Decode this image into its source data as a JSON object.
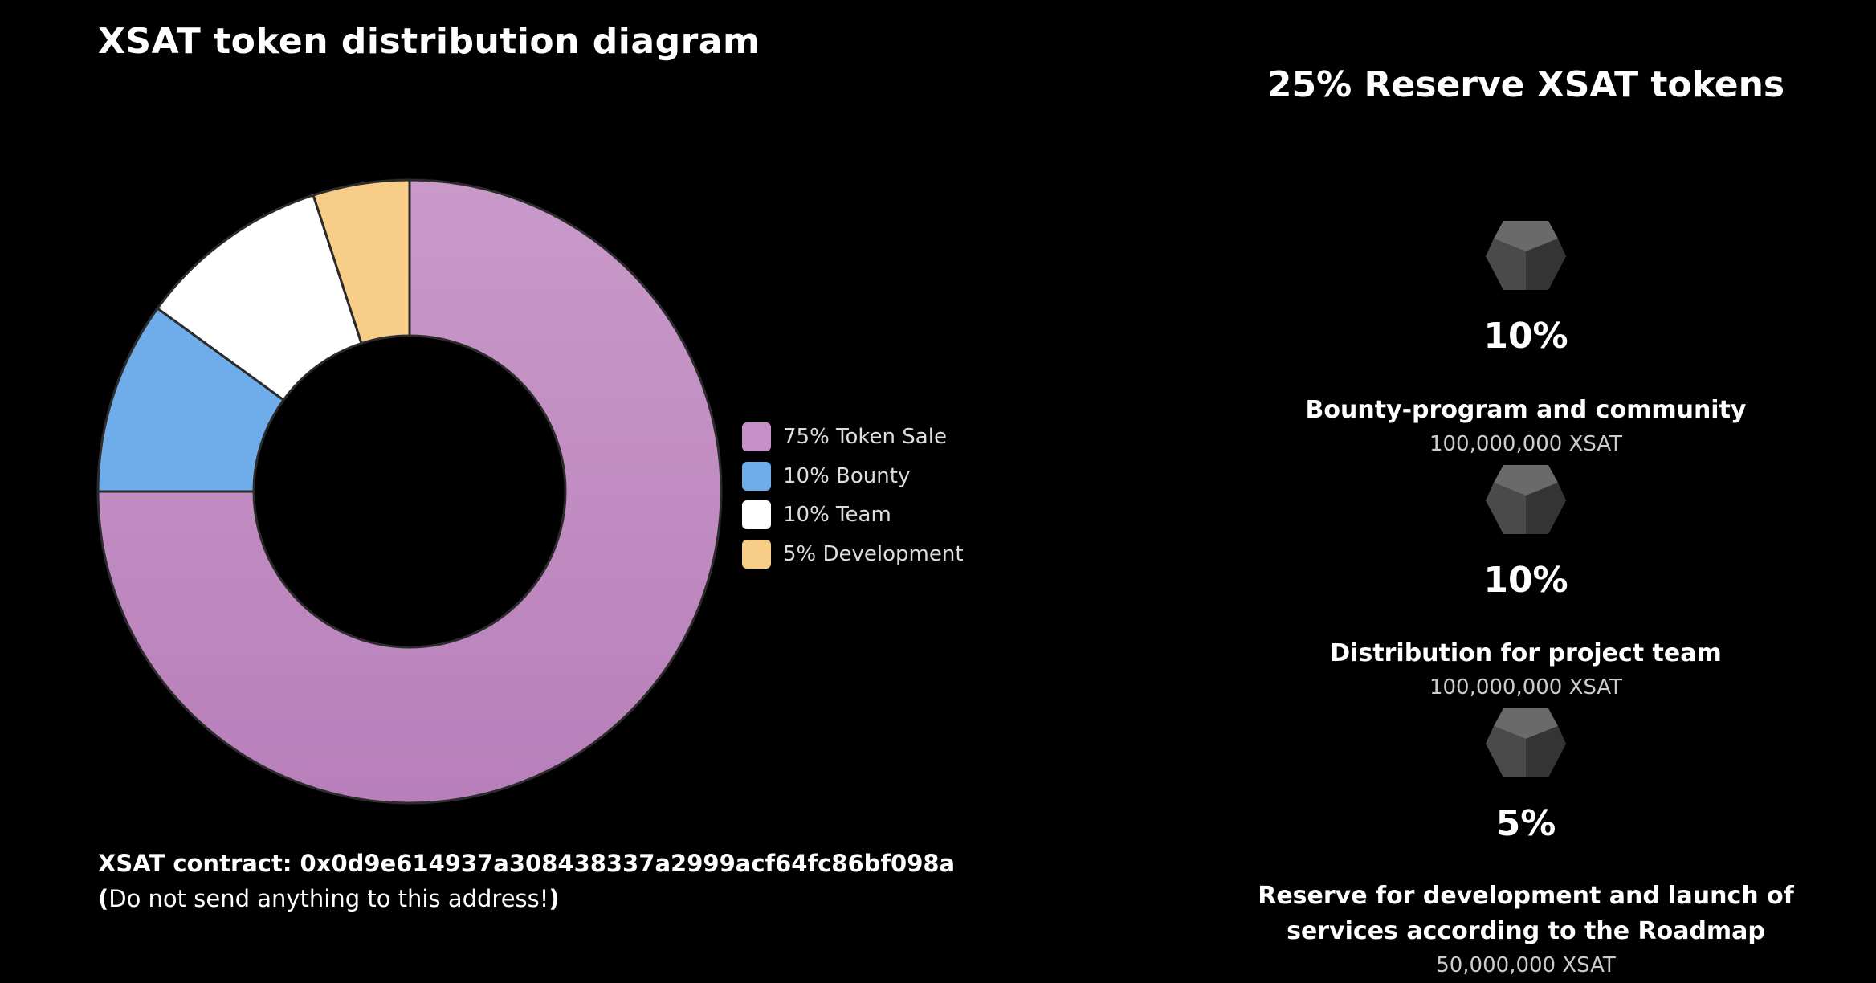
{
  "title": "XSAT token distribution diagram",
  "chart_data": {
    "type": "pie",
    "slices": [
      {
        "label": "75% Token Sale",
        "value": 75,
        "color": "#c490c6"
      },
      {
        "label": "10% Bounty",
        "value": 10,
        "color": "#6eacea"
      },
      {
        "label": "10% Team",
        "value": 10,
        "color": "#ffffff"
      },
      {
        "label": "5% Development",
        "value": 5,
        "color": "#f8cd88"
      }
    ]
  },
  "legend": [
    "75% Token Sale",
    "10% Bounty",
    "10% Team",
    "5% Development"
  ],
  "contract": {
    "label": "XSAT contract: 0x0d9e614937a308438337a2999acf64fc86bf098a",
    "warning_open": "(",
    "warning_text": "Do not send anything to this address!",
    "warning_close": ")"
  },
  "reserve": {
    "title": "25% Reserve XSAT tokens",
    "items": [
      {
        "percent": "10%",
        "description": "Bounty-program and community",
        "amount": "100,000,000 XSAT"
      },
      {
        "percent": "10%",
        "description": "Distribution for project team",
        "amount": "100,000,000 XSAT"
      },
      {
        "percent": "5%",
        "description": "Reserve for development and launch of services according to the Roadmap",
        "amount": "50,000,000 XSAT"
      }
    ]
  },
  "icons": {
    "reserve_item": "dodecahedron-icon"
  }
}
